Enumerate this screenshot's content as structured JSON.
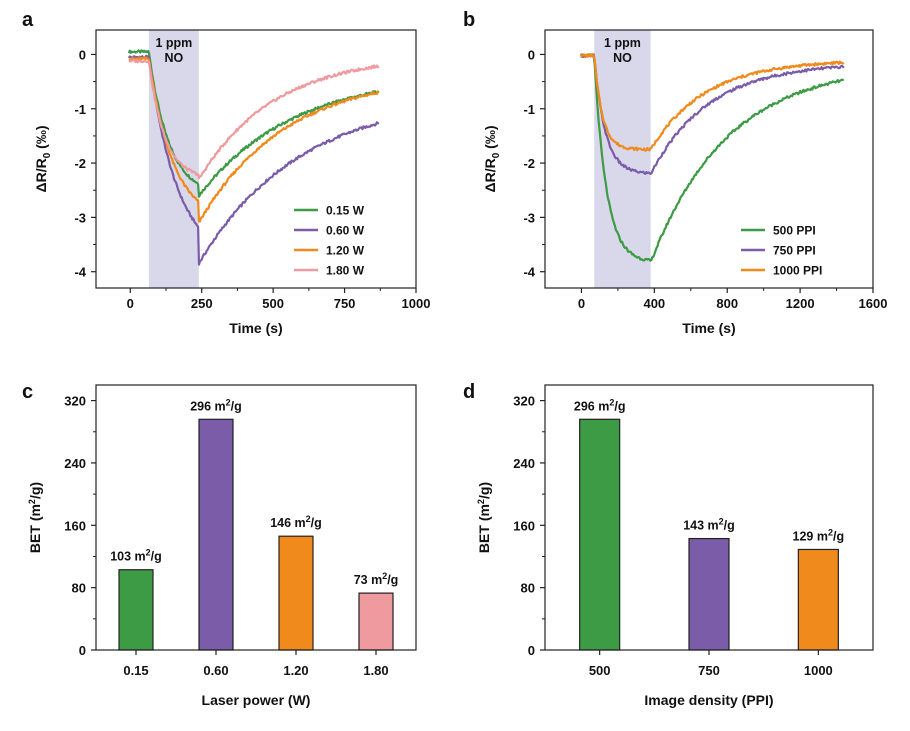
{
  "colors": {
    "green": "#3d9a45",
    "purple": "#7b5ca8",
    "orange": "#f08a1c",
    "pink": "#ef9a9e",
    "shade": "#d9d8ea"
  },
  "chart_data": [
    {
      "panel": "a",
      "type": "line",
      "xlabel": "Time (s)",
      "ylabel_parts": [
        "ΔR/R",
        "0",
        " (‰)"
      ],
      "xlim": [
        -120,
        1000
      ],
      "ylim": [
        -4.3,
        0.45
      ],
      "xticks": [
        0,
        250,
        500,
        750,
        1000
      ],
      "yticks": [
        0,
        -1,
        -2,
        -3,
        -4
      ],
      "shade": {
        "x": [
          65,
          240
        ],
        "label_lines": [
          "1 ppm",
          "NO"
        ]
      },
      "legend": "lower-right",
      "model": {
        "t0": 65,
        "t1": 240,
        "tend": 870
      },
      "series": [
        {
          "name": "0.15 W",
          "color": "green",
          "start": 0.05,
          "peak": -2.6,
          "tau_on": 70,
          "final": -0.35,
          "tau_off": 330
        },
        {
          "name": "0.60 W",
          "color": "purple",
          "start": -0.05,
          "peak": -3.85,
          "tau_on": 100,
          "final": -0.75,
          "tau_off": 350
        },
        {
          "name": "1.20 W",
          "color": "orange",
          "start": -0.08,
          "peak": -3.1,
          "tau_on": 85,
          "final": -0.36,
          "tau_off": 300
        },
        {
          "name": "1.80 W",
          "color": "pink",
          "start": -0.12,
          "peak": -2.3,
          "tau_on": 55,
          "final": 0.0,
          "tau_off": 265
        }
      ]
    },
    {
      "panel": "b",
      "type": "line",
      "xlabel": "Time (s)",
      "ylabel_parts": [
        "ΔR/R",
        "0",
        " (‰)"
      ],
      "xlim": [
        -200,
        1600
      ],
      "ylim": [
        -4.3,
        0.45
      ],
      "xticks": [
        0,
        400,
        800,
        1200,
        1600
      ],
      "yticks": [
        0,
        -1,
        -2,
        -3,
        -4
      ],
      "shade": {
        "x": [
          70,
          380
        ],
        "label_lines": [
          "1 ppm",
          "NO"
        ]
      },
      "legend": "lower-right",
      "model": {
        "t0": 70,
        "t1": 380,
        "tend": 1440
      },
      "series": [
        {
          "name": "500 PPI",
          "color": "green",
          "start": -0.02,
          "peak": -3.83,
          "tau_on": 65,
          "final": -0.18,
          "tau_off": 420
        },
        {
          "name": "750 PPI",
          "color": "purple",
          "start": -0.02,
          "peak": -2.2,
          "tau_on": 60,
          "final": -0.15,
          "tau_off": 320
        },
        {
          "name": "1000 PPI",
          "color": "orange",
          "start": -0.02,
          "peak": -1.75,
          "tau_on": 45,
          "final": -0.1,
          "tau_off": 300
        }
      ]
    },
    {
      "panel": "c",
      "type": "bar",
      "xlabel": "Laser power (W)",
      "ylabel": "BET (m²/g)",
      "ylim": [
        0,
        340
      ],
      "yticks": [
        0,
        80,
        160,
        240,
        320
      ],
      "categories": [
        "0.15",
        "0.60",
        "1.20",
        "1.80"
      ],
      "values": [
        103,
        296,
        146,
        73
      ],
      "colors": [
        "green",
        "purple",
        "orange",
        "pink"
      ],
      "labels": [
        "103 m²/g",
        "296 m²/g",
        "146 m²/g",
        "73 m²/g"
      ]
    },
    {
      "panel": "d",
      "type": "bar",
      "xlabel": "Image density (PPI)",
      "ylabel": "BET (m²/g)",
      "ylim": [
        0,
        340
      ],
      "yticks": [
        0,
        80,
        160,
        240,
        320
      ],
      "categories": [
        "500",
        "750",
        "1000"
      ],
      "values": [
        296,
        143,
        129
      ],
      "colors": [
        "green",
        "purple",
        "orange"
      ],
      "labels": [
        "296 m²/g",
        "143 m²/g",
        "129 m²/g"
      ]
    }
  ]
}
